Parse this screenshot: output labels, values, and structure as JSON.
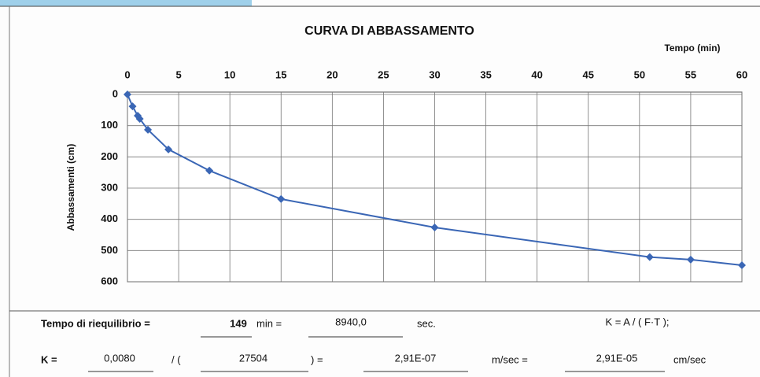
{
  "chart_data": {
    "type": "line",
    "title": "CURVA DI ABBASSAMENTO",
    "x_label": "Tempo (min)",
    "y_label": "Abbassamenti (cm)",
    "x": [
      0,
      0.5,
      1,
      1.2,
      2,
      4,
      8,
      15,
      30,
      51,
      55,
      60
    ],
    "series": [
      {
        "name": "Abbassamenti",
        "color": "#3a66b5",
        "values": [
          0,
          38,
          68,
          78,
          113,
          176,
          244,
          335,
          426,
          521,
          529,
          547
        ]
      }
    ],
    "xlim": [
      0,
      60
    ],
    "xticks": [
      0,
      5,
      10,
      15,
      20,
      25,
      30,
      35,
      40,
      45,
      50,
      55,
      60
    ],
    "ylim": [
      0,
      600
    ],
    "yticks": [
      0,
      100,
      200,
      300,
      400,
      500,
      600
    ],
    "y_inverted": true,
    "x_axis_position": "top",
    "grid": true
  },
  "footer": {
    "row1": [
      "Tempo di riequilibrio =",
      "149",
      "min =",
      "8940,0",
      "sec.",
      "K = A / ( F·T );"
    ],
    "row2": [
      "K =",
      "0,0080",
      "/  (",
      "27504",
      ") =",
      "2,91E-07",
      "m/sec =",
      "2,91E-05",
      "cm/sec"
    ]
  }
}
